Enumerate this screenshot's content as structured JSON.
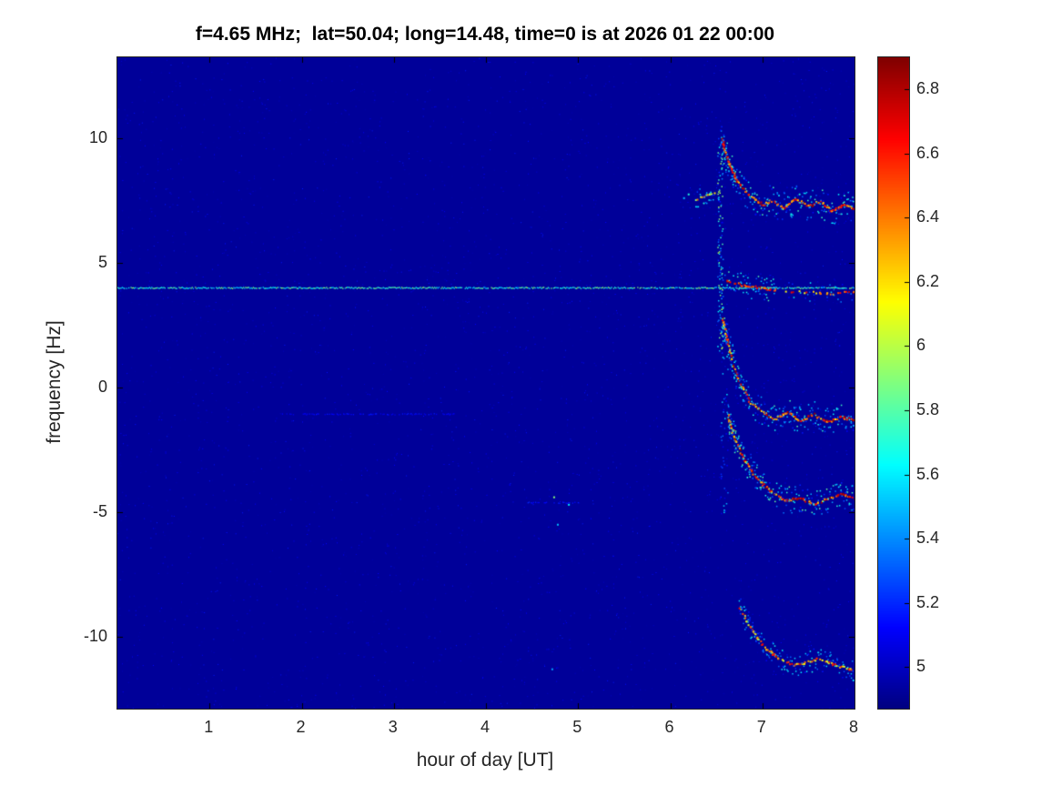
{
  "chart_data": {
    "type": "heatmap",
    "title": "f=4.65 MHz;  lat=50.04; long=14.48, time=0 is at 2026 01 22 00:00",
    "xlabel": "hour of day [UT]",
    "ylabel": "frequency [Hz]",
    "xlim": [
      0,
      8
    ],
    "ylim": [
      -12.88,
      13.25
    ],
    "x_ticks": [
      1,
      2,
      3,
      4,
      5,
      6,
      7,
      8
    ],
    "y_ticks": [
      -10,
      -5,
      0,
      5,
      10
    ],
    "grid": false,
    "background_value": 4.92,
    "colorbar": {
      "colormap": "jet",
      "min": 4.87,
      "max": 6.9,
      "ticks": [
        5,
        5.2,
        5.4,
        5.6,
        5.8,
        6,
        6.2,
        6.4,
        6.6,
        6.8
      ],
      "position": "right"
    },
    "features": [
      {
        "kind": "speckles",
        "x0": 0,
        "x1": 8,
        "y0": -12.8,
        "y1": 13.1,
        "count": 3500,
        "vmin": 4.95,
        "vmax": 5.18
      },
      {
        "kind": "hline",
        "name": "carrier-line-4hz",
        "y": 4.02,
        "x0": 0,
        "x1": 8,
        "value": 5.7,
        "jitter": 0.5,
        "dropout": 0.08
      },
      {
        "kind": "hline",
        "name": "faint-line-minus1hz",
        "y": -1.05,
        "x0": 1.75,
        "x1": 3.65,
        "value": 5.12,
        "jitter": 0.12,
        "dropout": 0.55
      },
      {
        "kind": "hline",
        "name": "faint-line-minus4.6hz",
        "y": -4.6,
        "x0": 4.45,
        "x1": 5.05,
        "value": 5.15,
        "jitter": 0.12,
        "dropout": 0.5
      },
      {
        "kind": "dots",
        "name": "isolated-specks",
        "points": [
          [
            4.74,
            -4.4,
            5.9
          ],
          [
            4.78,
            -5.5,
            5.5
          ],
          [
            4.72,
            -11.3,
            5.45
          ],
          [
            4.9,
            -4.7,
            5.6
          ],
          [
            6.15,
            7.6,
            5.5
          ],
          [
            6.2,
            7.75,
            5.7
          ]
        ]
      },
      {
        "kind": "streak",
        "name": "onset-streak-upper",
        "x": 6.54,
        "y0": 1.5,
        "y1": 10.1,
        "value": 5.55,
        "jitter": 0.45,
        "density": 0.75,
        "xspread": 0.03
      },
      {
        "kind": "streak",
        "name": "onset-streak-lower",
        "x": 6.58,
        "y0": -5.2,
        "y1": 1.5,
        "value": 5.3,
        "jitter": 0.3,
        "density": 0.35,
        "xspread": 0.04
      },
      {
        "kind": "trace",
        "name": "pre-onset-blob",
        "points": [
          [
            6.27,
            7.6
          ],
          [
            6.38,
            7.72
          ],
          [
            6.48,
            7.8
          ]
        ],
        "core_value": 6.15,
        "core_jitter": 0.45,
        "core_density": 0.7,
        "halo_value": 5.5,
        "halo_jitter": 0.3,
        "halo_spread": 0.35,
        "halo_density": 1.2
      },
      {
        "kind": "trace",
        "name": "band-upper-7.3hz",
        "points": [
          [
            6.55,
            10.1
          ],
          [
            6.62,
            9.1
          ],
          [
            6.72,
            8.3
          ],
          [
            6.85,
            7.75
          ],
          [
            7.0,
            7.35
          ],
          [
            7.1,
            7.55
          ],
          [
            7.22,
            7.2
          ],
          [
            7.35,
            7.6
          ],
          [
            7.5,
            7.3
          ],
          [
            7.62,
            7.5
          ],
          [
            7.75,
            7.1
          ],
          [
            7.88,
            7.35
          ],
          [
            8.0,
            7.2
          ]
        ],
        "core_value": 6.55,
        "core_jitter": 0.35,
        "core_density": 0.85,
        "halo_value": 5.45,
        "halo_jitter": 0.35,
        "halo_spread": 0.6,
        "halo_density": 1.6
      },
      {
        "kind": "trace",
        "name": "band-4hz-enhancement",
        "points": [
          [
            6.6,
            4.35
          ],
          [
            6.75,
            4.15
          ],
          [
            6.95,
            4.05
          ],
          [
            7.15,
            3.95
          ]
        ],
        "core_value": 6.6,
        "core_jitter": 0.3,
        "core_density": 0.9,
        "halo_value": 5.5,
        "halo_jitter": 0.3,
        "halo_spread": 0.5,
        "halo_density": 1.4
      },
      {
        "kind": "trace",
        "name": "band-4hz-tail",
        "points": [
          [
            7.25,
            3.9
          ],
          [
            7.5,
            3.85
          ],
          [
            7.75,
            3.8
          ],
          [
            8.0,
            3.9
          ]
        ],
        "core_value": 6.45,
        "core_jitter": 0.35,
        "core_density": 0.35,
        "halo_value": 5.4,
        "halo_jitter": 0.3,
        "halo_spread": 0.4,
        "halo_density": 0.5
      },
      {
        "kind": "trace",
        "name": "band-mid-minus1hz",
        "points": [
          [
            6.56,
            2.8
          ],
          [
            6.62,
            1.8
          ],
          [
            6.68,
            0.9
          ],
          [
            6.76,
            0.1
          ],
          [
            6.86,
            -0.55
          ],
          [
            7.0,
            -0.95
          ],
          [
            7.12,
            -1.25
          ],
          [
            7.26,
            -0.95
          ],
          [
            7.4,
            -1.3
          ],
          [
            7.55,
            -1.05
          ],
          [
            7.7,
            -1.35
          ],
          [
            7.85,
            -1.15
          ],
          [
            8.0,
            -1.3
          ]
        ],
        "core_value": 6.5,
        "core_jitter": 0.4,
        "core_density": 0.8,
        "halo_value": 5.45,
        "halo_jitter": 0.35,
        "halo_spread": 0.55,
        "halo_density": 1.5
      },
      {
        "kind": "trace",
        "name": "band-lower-minus4.5hz",
        "points": [
          [
            6.62,
            -1.1
          ],
          [
            6.7,
            -2.1
          ],
          [
            6.8,
            -2.9
          ],
          [
            6.9,
            -3.45
          ],
          [
            7.0,
            -3.85
          ],
          [
            7.12,
            -4.25
          ],
          [
            7.25,
            -4.5
          ],
          [
            7.4,
            -4.4
          ],
          [
            7.55,
            -4.65
          ],
          [
            7.7,
            -4.45
          ],
          [
            7.85,
            -4.25
          ],
          [
            8.0,
            -4.45
          ]
        ],
        "core_value": 6.55,
        "core_jitter": 0.35,
        "core_density": 0.85,
        "halo_value": 5.5,
        "halo_jitter": 0.35,
        "halo_spread": 0.55,
        "halo_density": 1.6
      },
      {
        "kind": "trace",
        "name": "band-bottom-minus11hz",
        "points": [
          [
            6.75,
            -8.8
          ],
          [
            6.85,
            -9.5
          ],
          [
            6.95,
            -10.1
          ],
          [
            7.05,
            -10.5
          ],
          [
            7.18,
            -10.85
          ],
          [
            7.32,
            -11.1
          ],
          [
            7.48,
            -11.0
          ],
          [
            7.6,
            -10.85
          ],
          [
            7.75,
            -11.05
          ],
          [
            7.88,
            -11.2
          ],
          [
            8.0,
            -11.35
          ]
        ],
        "core_value": 6.35,
        "core_jitter": 0.4,
        "core_density": 0.7,
        "halo_value": 5.4,
        "halo_jitter": 0.3,
        "halo_spread": 0.45,
        "halo_density": 1.2
      }
    ]
  }
}
